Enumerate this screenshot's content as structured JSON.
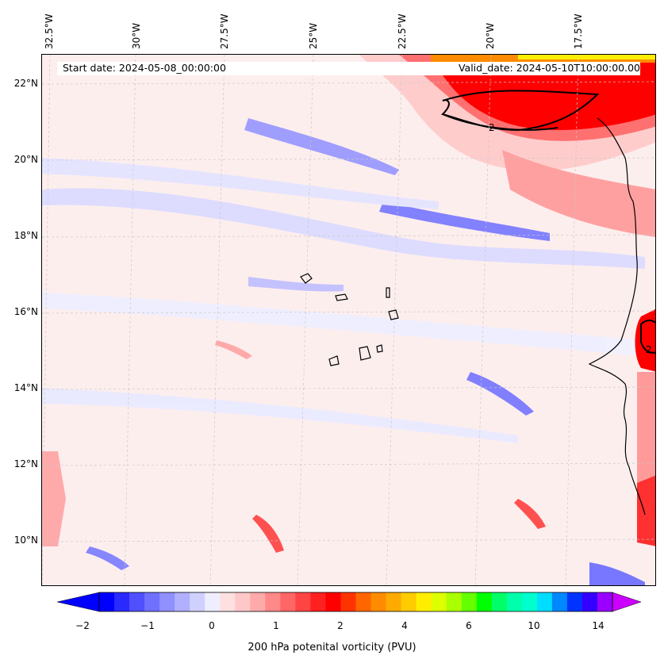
{
  "header": {
    "start_date": "Start date: 2024-05-08_00:00:00",
    "valid_date": "Valid_date: 2024-05-10T10:00:00.00"
  },
  "map": {
    "lon_labels": [
      "32.5°W",
      "30°W",
      "27.5°W",
      "25°W",
      "22.5°W",
      "20°W",
      "17.5°W"
    ],
    "lat_labels": [
      "22°N",
      "20°N",
      "18°N",
      "16°N",
      "14°N",
      "12°N",
      "10°N"
    ],
    "contour_labels": [
      "2",
      "2"
    ]
  },
  "colorbar": {
    "label": "200 hPa potenital vorticity (PVU)",
    "tick_labels": [
      "−2",
      "−1",
      "0",
      "1",
      "2",
      "4",
      "6",
      "10",
      "14"
    ],
    "colors": [
      "#0000ff",
      "#2a2aff",
      "#5050ff",
      "#7070ff",
      "#9090ff",
      "#b0b0ff",
      "#d0d0ff",
      "#eeeeff",
      "#ffe0e0",
      "#ffc8c8",
      "#ffaaaa",
      "#ff8888",
      "#ff6666",
      "#ff4444",
      "#ff2020",
      "#ff0000",
      "#ff3300",
      "#ff6600",
      "#ff8c00",
      "#ffaa00",
      "#ffcc00",
      "#ffee00",
      "#ddff00",
      "#aaff00",
      "#66ff00",
      "#00ff00",
      "#00ff66",
      "#00ffaa",
      "#00ffcc",
      "#00ddff",
      "#0088ff",
      "#0033ff",
      "#3300ff",
      "#9900ff"
    ],
    "under_color": "#0000ff",
    "over_color": "#cc00ff"
  }
}
